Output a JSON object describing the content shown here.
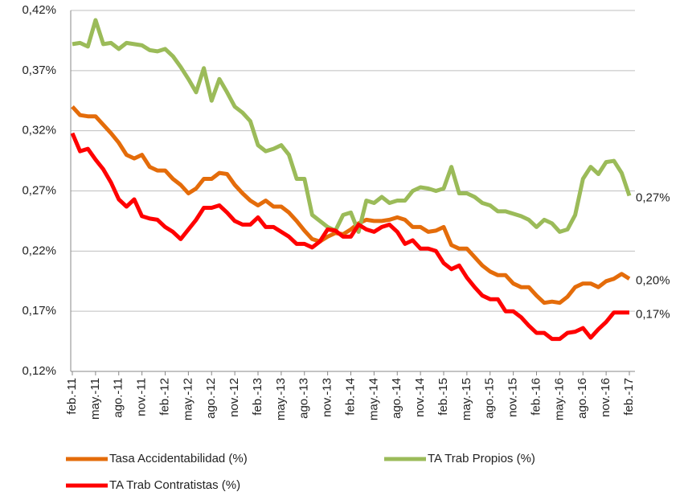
{
  "chart_data": {
    "type": "line",
    "categories": [
      "feb.-11",
      null,
      null,
      "may.-11",
      null,
      null,
      "ago.-11",
      null,
      null,
      "nov.-11",
      null,
      null,
      "feb.-12",
      null,
      null,
      "may.-12",
      null,
      null,
      "ago.-12",
      null,
      null,
      "nov.-12",
      null,
      null,
      "feb.-13",
      null,
      null,
      "may.-13",
      null,
      null,
      "ago.-13",
      null,
      null,
      "nov.-13",
      null,
      null,
      "feb.-14",
      null,
      null,
      "may.-14",
      null,
      null,
      "ago.-14",
      null,
      null,
      "nov.-14",
      null,
      null,
      "feb.-15",
      null,
      null,
      "may.-15",
      null,
      null,
      "ago.-15",
      null,
      null,
      "nov.-15",
      null,
      null,
      "feb.-16",
      null,
      null,
      "may.-16",
      null,
      null,
      "ago.-16",
      null,
      null,
      "nov.-16",
      null,
      null,
      "feb.-17"
    ],
    "series": [
      {
        "name": "Tasa Accidentabilidad (%)",
        "color": "#e46c0a",
        "values": [
          0.34,
          0.333,
          0.332,
          0.332,
          0.325,
          0.318,
          0.31,
          0.3,
          0.297,
          0.3,
          0.29,
          0.287,
          0.287,
          0.28,
          0.275,
          0.268,
          0.272,
          0.28,
          0.28,
          0.285,
          0.284,
          0.275,
          0.268,
          0.262,
          0.258,
          0.262,
          0.257,
          0.257,
          0.252,
          0.245,
          0.237,
          0.23,
          0.228,
          0.232,
          0.235,
          0.234,
          0.238,
          0.243,
          0.246,
          0.245,
          0.245,
          0.246,
          0.248,
          0.246,
          0.24,
          0.24,
          0.236,
          0.237,
          0.24,
          0.225,
          0.222,
          0.222,
          0.215,
          0.208,
          0.203,
          0.2,
          0.2,
          0.193,
          0.19,
          0.19,
          0.183,
          0.177,
          0.178,
          0.177,
          0.182,
          0.19,
          0.193,
          0.193,
          0.19,
          0.195,
          0.197,
          0.201,
          0.197
        ],
        "value_labels": [
          null,
          null,
          null,
          null,
          null,
          null,
          null,
          null,
          null,
          null,
          null,
          null,
          null,
          null,
          null,
          null,
          null,
          null,
          null,
          null,
          null,
          null,
          null,
          null,
          null,
          null,
          null,
          null,
          null,
          null,
          null,
          null,
          null,
          null,
          null,
          null,
          null,
          null,
          null,
          null,
          null,
          null,
          null,
          null,
          null,
          null,
          null,
          null,
          null,
          null,
          null,
          null,
          null,
          null,
          null,
          null,
          null,
          null,
          null,
          null,
          null,
          null,
          null,
          null,
          null,
          null,
          null,
          null,
          null,
          null,
          null,
          null,
          "0,20%"
        ]
      },
      {
        "name": "TA Trab Propios (%)",
        "color": "#9bbb59",
        "values": [
          0.392,
          0.393,
          0.39,
          0.412,
          0.392,
          0.393,
          0.388,
          0.393,
          0.392,
          0.391,
          0.387,
          0.386,
          0.388,
          0.382,
          0.373,
          0.363,
          0.352,
          0.372,
          0.345,
          0.363,
          0.352,
          0.34,
          0.335,
          0.328,
          0.308,
          0.303,
          0.305,
          0.308,
          0.3,
          0.28,
          0.28,
          0.25,
          0.245,
          0.24,
          0.237,
          0.25,
          0.252,
          0.236,
          0.262,
          0.26,
          0.265,
          0.26,
          0.262,
          0.262,
          0.27,
          0.273,
          0.272,
          0.27,
          0.272,
          0.29,
          0.268,
          0.268,
          0.265,
          0.26,
          0.258,
          0.253,
          0.253,
          0.251,
          0.249,
          0.246,
          0.24,
          0.246,
          0.243,
          0.236,
          0.238,
          0.25,
          0.28,
          0.29,
          0.284,
          0.294,
          0.295,
          0.285,
          0.266
        ],
        "value_labels": [
          null,
          null,
          null,
          null,
          null,
          null,
          null,
          null,
          null,
          null,
          null,
          null,
          null,
          null,
          null,
          null,
          null,
          null,
          null,
          null,
          null,
          null,
          null,
          null,
          null,
          null,
          null,
          null,
          null,
          null,
          null,
          null,
          null,
          null,
          null,
          null,
          null,
          null,
          null,
          null,
          null,
          null,
          null,
          null,
          null,
          null,
          null,
          null,
          null,
          null,
          null,
          null,
          null,
          null,
          null,
          null,
          null,
          null,
          null,
          null,
          null,
          null,
          null,
          null,
          null,
          null,
          null,
          null,
          null,
          null,
          null,
          null,
          "0,27%"
        ]
      },
      {
        "name": "TA Trab Contratistas (%)",
        "color": "#ff0000",
        "values": [
          0.318,
          0.303,
          0.305,
          0.296,
          0.288,
          0.277,
          0.263,
          0.257,
          0.263,
          0.249,
          0.247,
          0.246,
          0.24,
          0.236,
          0.23,
          0.238,
          0.246,
          0.256,
          0.256,
          0.258,
          0.252,
          0.245,
          0.242,
          0.242,
          0.248,
          0.24,
          0.24,
          0.236,
          0.232,
          0.226,
          0.226,
          0.223,
          0.228,
          0.238,
          0.237,
          0.232,
          0.232,
          0.242,
          0.238,
          0.236,
          0.24,
          0.242,
          0.236,
          0.226,
          0.229,
          0.222,
          0.222,
          0.22,
          0.21,
          0.205,
          0.208,
          0.198,
          0.19,
          0.183,
          0.18,
          0.18,
          0.17,
          0.17,
          0.165,
          0.158,
          0.152,
          0.152,
          0.147,
          0.147,
          0.152,
          0.153,
          0.156,
          0.148,
          0.155,
          0.161,
          0.169,
          0.169,
          0.169
        ],
        "value_labels": [
          null,
          null,
          null,
          null,
          null,
          null,
          null,
          null,
          null,
          null,
          null,
          null,
          null,
          null,
          null,
          null,
          null,
          null,
          null,
          null,
          null,
          null,
          null,
          null,
          null,
          null,
          null,
          null,
          null,
          null,
          null,
          null,
          null,
          null,
          null,
          null,
          null,
          null,
          null,
          null,
          null,
          null,
          null,
          null,
          null,
          null,
          null,
          null,
          null,
          null,
          null,
          null,
          null,
          null,
          null,
          null,
          null,
          null,
          null,
          null,
          null,
          null,
          null,
          null,
          null,
          null,
          null,
          null,
          null,
          null,
          null,
          null,
          "0,17%"
        ]
      }
    ],
    "ylim": [
      0.12,
      0.42
    ],
    "yticks": [
      {
        "value": 0.12,
        "label": "0,12%"
      },
      {
        "value": 0.17,
        "label": "0,17%"
      },
      {
        "value": 0.22,
        "label": "0,22%"
      },
      {
        "value": 0.27,
        "label": "0,27%"
      },
      {
        "value": 0.32,
        "label": "0,32%"
      },
      {
        "value": 0.37,
        "label": "0,37%"
      },
      {
        "value": 0.42,
        "label": "0,42%"
      }
    ],
    "grid": true
  }
}
